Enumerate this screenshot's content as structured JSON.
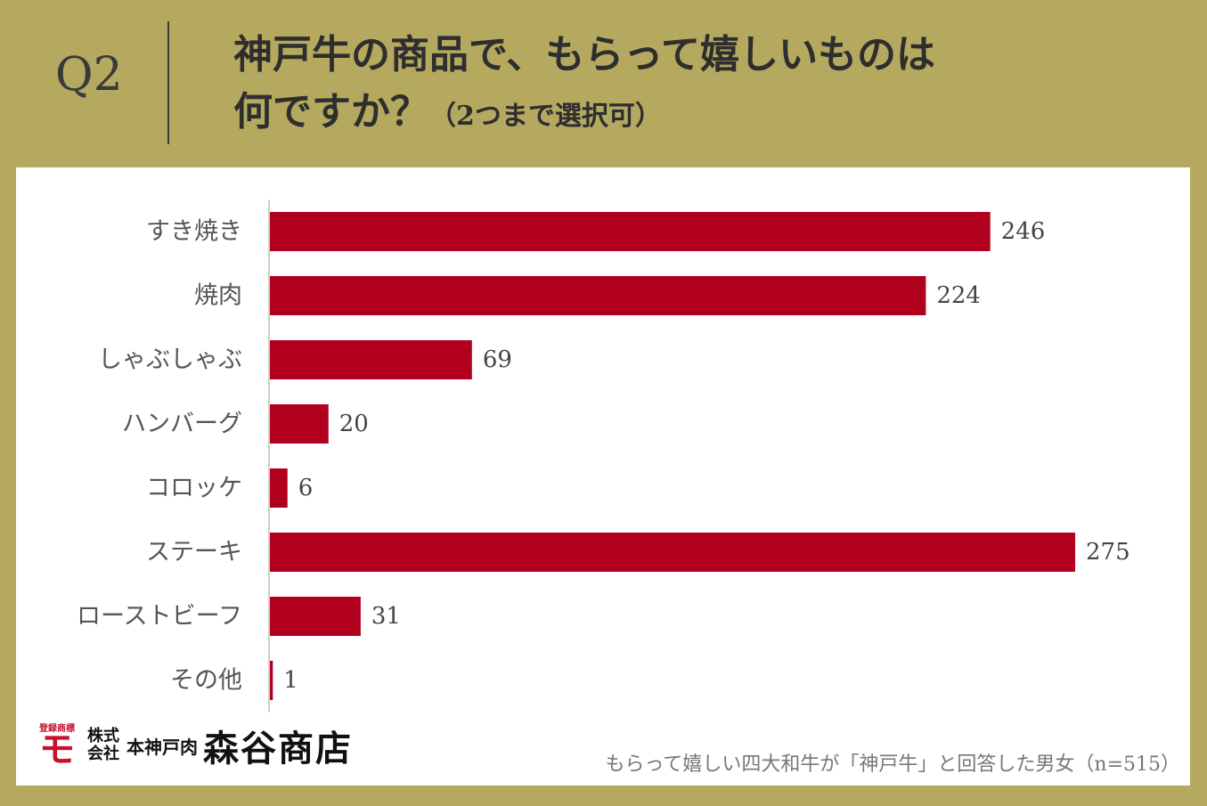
{
  "header": {
    "question": "Q2",
    "title_line1": "神戸牛の商品で、もらって嬉しいものは",
    "title_line2": "何ですか？",
    "title_sub": "（2つまで選択可）"
  },
  "chart_data": {
    "type": "bar",
    "orientation": "horizontal",
    "categories": [
      "すき焼き",
      "焼肉",
      "しゃぶしゃぶ",
      "ハンバーグ",
      "コロッケ",
      "ステーキ",
      "ローストビーフ",
      "その他"
    ],
    "values": [
      246,
      224,
      69,
      20,
      6,
      275,
      31,
      1
    ],
    "title": "",
    "xlabel": "",
    "ylabel": "",
    "xlim": [
      0,
      275
    ],
    "grid": false,
    "bar_color": "#b0001e"
  },
  "footer": {
    "logo_registered": "登録商標",
    "logo_mark": "モ",
    "logo_company_1": "株式",
    "logo_company_2": "会社",
    "logo_sub": "本神戸肉",
    "logo_name": "森谷商店",
    "note": "もらって嬉しい四大和牛が「神戸牛」と回答した男女（n=515）"
  },
  "colors": {
    "background": "#b5a95f",
    "panel": "#ffffff",
    "bar": "#b0001e",
    "logo_red": "#c8102e"
  }
}
